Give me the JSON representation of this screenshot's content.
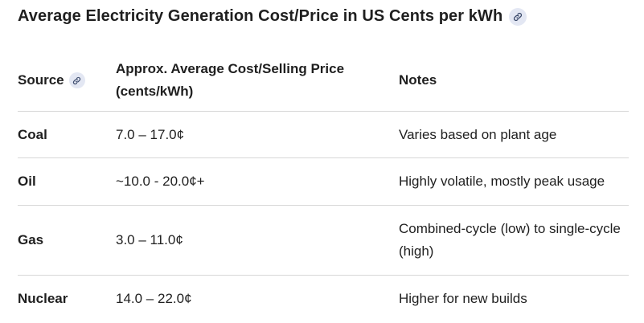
{
  "title": "Average Electricity Generation Cost/Price in US Cents per kWh",
  "table": {
    "headers": {
      "source": "Source",
      "price": "Approx. Average Cost/Selling Price (cents/kWh)",
      "notes": "Notes"
    },
    "rows": [
      {
        "source": "Coal",
        "price": "7.0 – 17.0¢",
        "notes": "Varies based on plant age"
      },
      {
        "source": "Oil",
        "price": "~10.0 - 20.0¢+",
        "notes": "Highly volatile, mostly peak usage"
      },
      {
        "source": "Gas",
        "price": "3.0 – 11.0¢",
        "notes": "Combined-cycle (low) to single-cycle (high)"
      },
      {
        "source": "Nuclear",
        "price": "14.0 – 22.0¢",
        "notes": "Higher for new builds"
      }
    ]
  },
  "icons": {
    "title_link": "link-icon",
    "source_link": "link-icon"
  },
  "colors": {
    "text": "#1f1f1f",
    "divider": "#d7d7d7",
    "chip_bg": "#e3e7f3"
  }
}
